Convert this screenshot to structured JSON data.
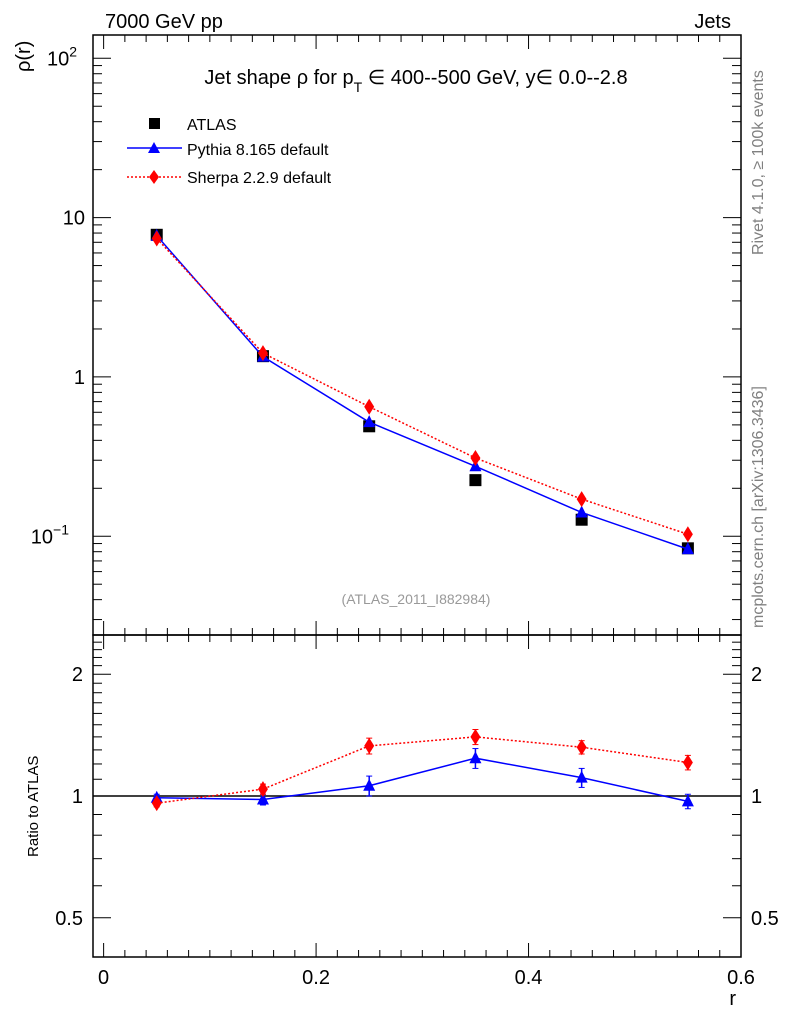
{
  "header": {
    "left": "7000 GeV pp",
    "right": "Jets"
  },
  "side_texts": {
    "rivet": "Rivet 4.1.0, ≥ 100k events",
    "mcplots": "mcplots.cern.ch [arXiv:1306.3436]"
  },
  "analysis_id": "(ATLAS_2011_I882984)",
  "colors": {
    "atlas": "#000000",
    "pythia": "#0000ff",
    "sherpa": "#ff0000",
    "side_text": "#808080"
  },
  "chart_data": [
    {
      "type": "line",
      "title": "Jet shape ρ for p_T ∈ 400--500 GeV, y∈ 0.0--2.8",
      "title_parts": {
        "a": "Jet shape ρ for p",
        "sub": "T",
        "b": " ∈ 400--500 GeV, y∈ 0.0--2.8"
      },
      "xlabel": "r",
      "ylabel": "ρ(r)",
      "yscale": "log",
      "xlim": [
        -0.01,
        0.6
      ],
      "ylim": [
        0.024,
        140
      ],
      "yticks": [
        {
          "v": 100,
          "label": "10",
          "sup": "2"
        },
        {
          "v": 10,
          "label": "10",
          "sup": ""
        },
        {
          "v": 1,
          "label": "1",
          "sup": ""
        },
        {
          "v": 0.1,
          "label": "10",
          "sup": "−1"
        }
      ],
      "legend_position": "top-left",
      "x": [
        0.05,
        0.15,
        0.25,
        0.35,
        0.45,
        0.55
      ],
      "series": [
        {
          "name": "ATLAS",
          "key": "atlas",
          "marker": "square",
          "line": "none",
          "values": [
            7.8,
            1.35,
            0.49,
            0.225,
            0.127,
            0.084
          ]
        },
        {
          "name": "Pythia 8.165 default",
          "key": "pythia",
          "marker": "triangle",
          "line": "solid",
          "values": [
            7.7,
            1.34,
            0.52,
            0.275,
            0.141,
            0.083
          ]
        },
        {
          "name": "Sherpa 2.2.9 default",
          "key": "sherpa",
          "marker": "diamond",
          "line": "dotted",
          "values": [
            7.4,
            1.41,
            0.65,
            0.31,
            0.171,
            0.103
          ]
        }
      ]
    },
    {
      "type": "line",
      "ylabel": "Ratio to ATLAS",
      "xlabel": "r",
      "yscale": "log",
      "xlim": [
        -0.01,
        0.6
      ],
      "ylim": [
        0.4,
        2.5
      ],
      "yticks": [
        0.5,
        1,
        2
      ],
      "ytick_labels": [
        "0.5",
        "1",
        "2"
      ],
      "xticks": [
        0,
        0.2,
        0.4,
        0.6
      ],
      "xtick_labels": [
        "0",
        "0.2",
        "0.4",
        "0.6"
      ],
      "reference": 1,
      "x": [
        0.05,
        0.15,
        0.25,
        0.35,
        0.45,
        0.55
      ],
      "series": [
        {
          "name": "Pythia 8.165 default",
          "key": "pythia",
          "values": [
            0.99,
            0.98,
            1.06,
            1.24,
            1.11,
            0.97
          ],
          "errors": [
            0.02,
            0.03,
            0.06,
            0.07,
            0.06,
            0.04
          ]
        },
        {
          "name": "Sherpa 2.2.9 default",
          "key": "sherpa",
          "values": [
            0.96,
            1.04,
            1.33,
            1.4,
            1.32,
            1.21
          ],
          "errors": [
            0.02,
            0.03,
            0.06,
            0.06,
            0.05,
            0.05
          ]
        }
      ]
    }
  ]
}
